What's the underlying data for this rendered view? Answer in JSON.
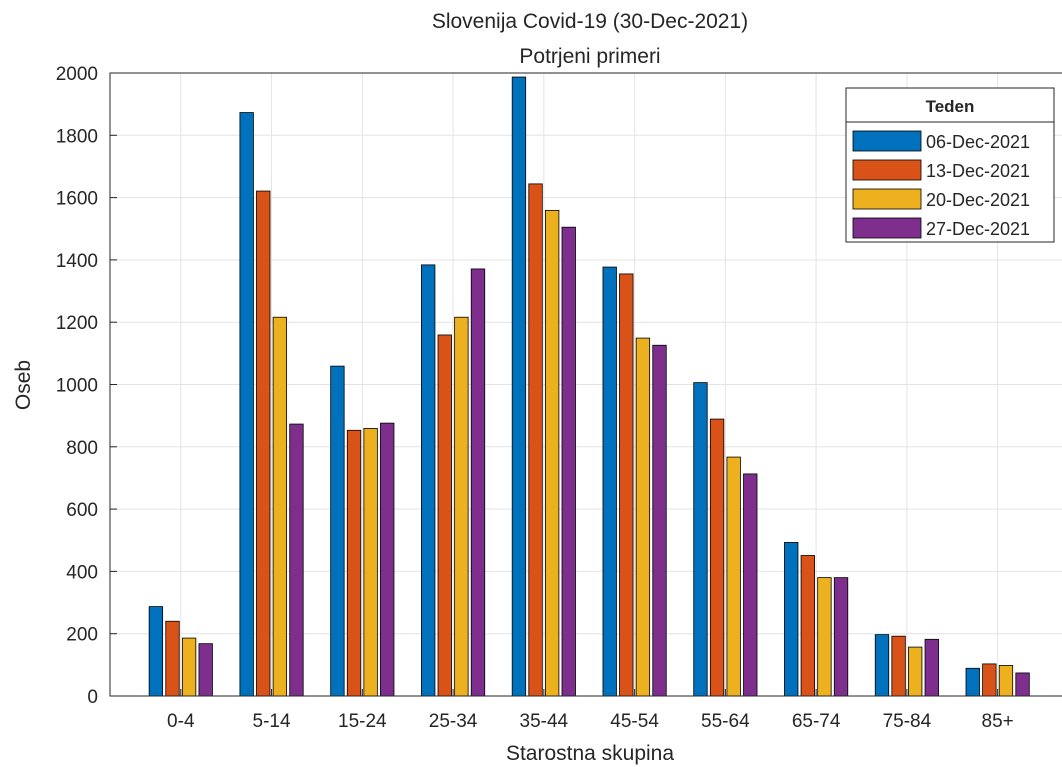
{
  "chart_data": {
    "type": "bar",
    "title": "Slovenija Covid-19 (30-Dec-2021)",
    "subtitle": "Potrjeni primeri",
    "xlabel": "Starostna skupina",
    "ylabel": "Oseb",
    "ylim": [
      0,
      2000
    ],
    "yticks": [
      0,
      200,
      400,
      600,
      800,
      1000,
      1200,
      1400,
      1600,
      1800,
      2000
    ],
    "grid": true,
    "legend": {
      "title": "Teden",
      "placement": "top-right"
    },
    "categories": [
      "0-4",
      "5-14",
      "15-24",
      "25-34",
      "35-44",
      "45-54",
      "55-64",
      "65-74",
      "75-84",
      "85+"
    ],
    "series": [
      {
        "name": "06-Dec-2021",
        "color": "#0072BD",
        "values": [
          287,
          1873,
          1059,
          1384,
          1987,
          1377,
          1006,
          493,
          197,
          89
        ]
      },
      {
        "name": "13-Dec-2021",
        "color": "#D95319",
        "values": [
          240,
          1621,
          853,
          1159,
          1644,
          1355,
          889,
          451,
          192,
          103
        ]
      },
      {
        "name": "20-Dec-2021",
        "color": "#EDB120",
        "values": [
          186,
          1216,
          859,
          1216,
          1559,
          1149,
          767,
          380,
          157,
          98
        ]
      },
      {
        "name": "27-Dec-2021",
        "color": "#7E2F8E",
        "values": [
          168,
          873,
          876,
          1371,
          1505,
          1126,
          713,
          380,
          182,
          74
        ]
      }
    ]
  }
}
